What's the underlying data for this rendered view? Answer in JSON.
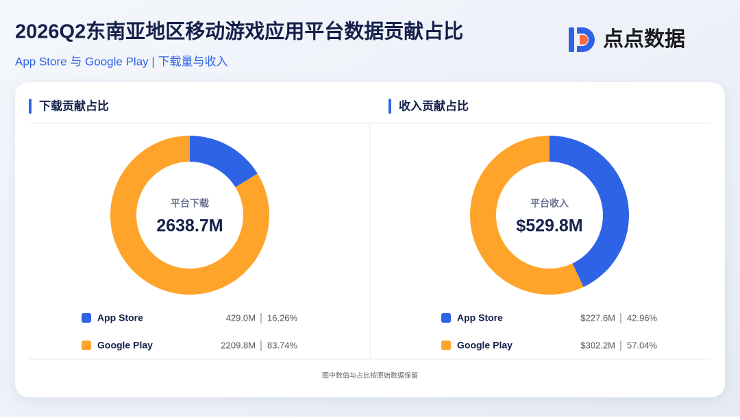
{
  "header": {
    "title": "2026Q2东南亚地区移动游戏应用平台数据贡献占比",
    "subtitle": "App Store 与 Google Play | 下载量与收入",
    "logo_text": "点点数据"
  },
  "chart_data": [
    {
      "type": "donut",
      "title": "下载贡献占比",
      "center_label": "平台下载",
      "total": 2638.7,
      "total_label": "2638.7M",
      "categories": [
        "App Store",
        "Google Play"
      ],
      "colors": [
        "#2f63e6",
        "#ffa42b"
      ],
      "values": [
        429.0,
        2209.8
      ],
      "value_labels": [
        "429.0M",
        "2209.8M"
      ],
      "percents": [
        16.26,
        83.74
      ],
      "percent_labels": [
        "16.26%",
        "83.74%"
      ]
    },
    {
      "type": "donut",
      "title": "收入贡献占比",
      "center_label": "平台收入",
      "total": 529.8,
      "total_label": "$529.8M",
      "categories": [
        "App Store",
        "Google Play"
      ],
      "colors": [
        "#2f63e6",
        "#ffa42b"
      ],
      "values": [
        227.6,
        302.2
      ],
      "value_labels": [
        "$227.6M",
        "$302.2M"
      ],
      "percents": [
        42.96,
        57.04
      ],
      "percent_labels": [
        "42.96%",
        "57.04%"
      ]
    }
  ],
  "footnote": "图中数值与占比按原始数据保留"
}
